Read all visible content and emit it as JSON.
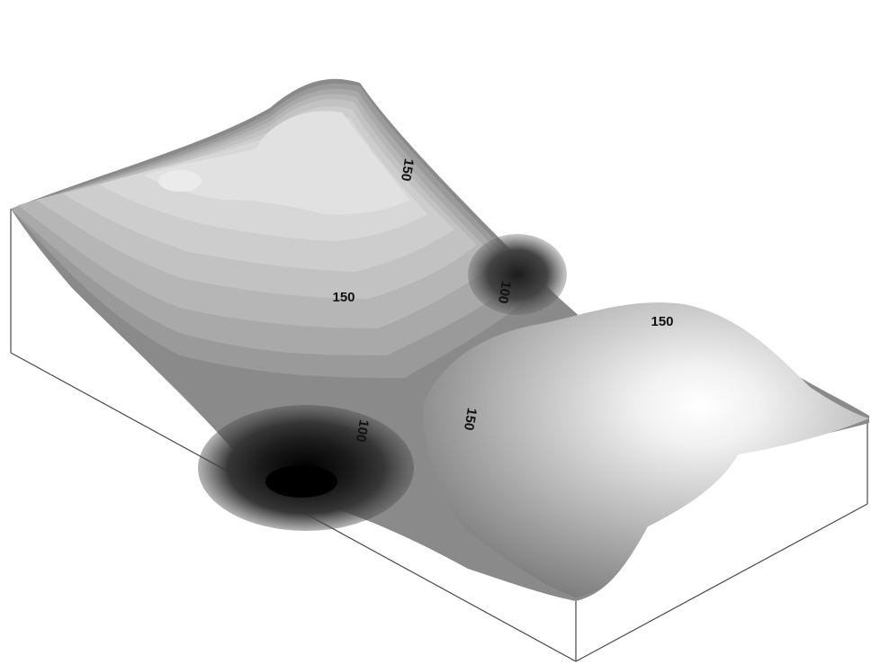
{
  "labels": [
    "150",
    "150",
    "100",
    "150",
    "100",
    "150"
  ],
  "colors": {
    "background": "#ffffff",
    "frame": "#4a4a4a",
    "label": "#111111"
  }
}
